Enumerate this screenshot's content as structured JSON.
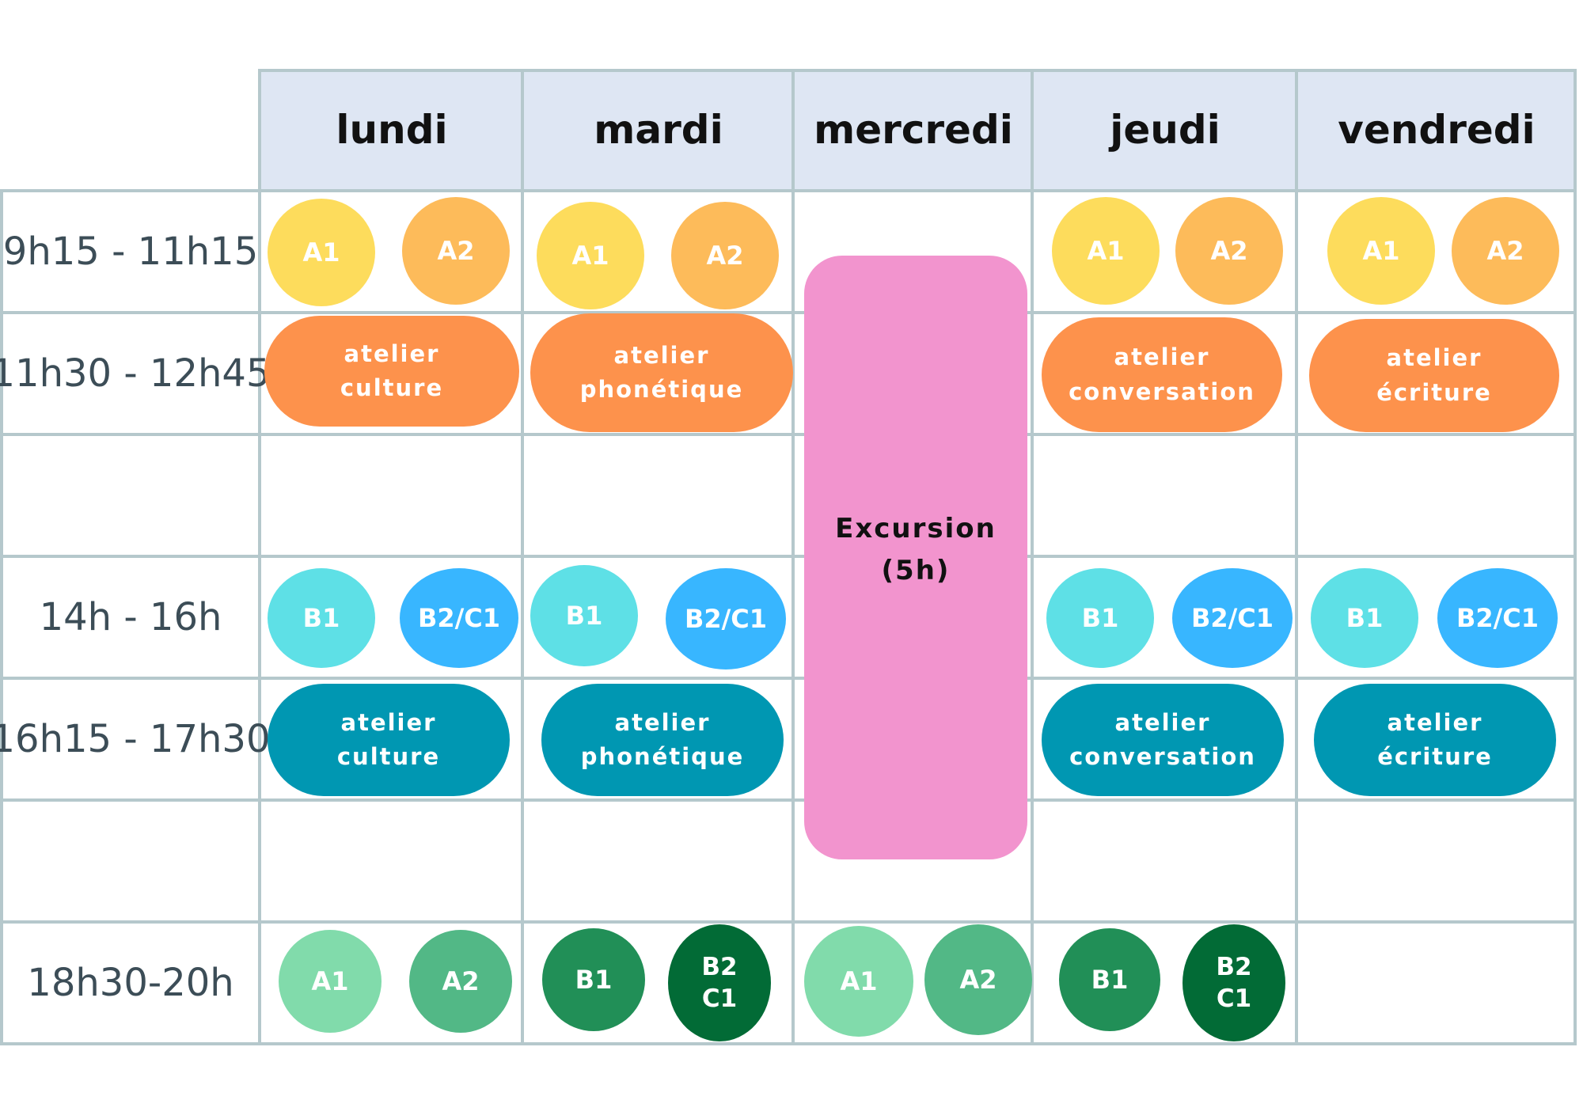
{
  "days": [
    "lundi",
    "mardi",
    "mercredi",
    "jeudi",
    "vendredi"
  ],
  "times": [
    "9h15 - 11h15",
    "11h30 - 12h45",
    "",
    "14h - 16h",
    "16h15 - 17h30",
    "",
    "18h30-20h"
  ],
  "levels": {
    "a1": "A1",
    "a2": "A2",
    "b1": "B1",
    "b2c1": "B2/C1",
    "b2": "B2",
    "c1": "C1"
  },
  "workshops": {
    "culture": [
      "atelier",
      "culture"
    ],
    "phonetique": [
      "atelier",
      "phonétique"
    ],
    "conversation": [
      "atelier",
      "conversation"
    ],
    "ecriture": [
      "atelier",
      "écriture"
    ]
  },
  "excursion": [
    "Excursion",
    "(5h)"
  ],
  "colors": {
    "header_bg": "#dee6f3",
    "grid_line": "#b5c8cc",
    "a1_morning": "#fddc5c",
    "a2_morning": "#fdbb5a",
    "workshop_midday": "#fd924c",
    "b1_afternoon": "#5ee0e6",
    "b2c1_afternoon": "#38b6ff",
    "workshop_afternoon": "#0097b2",
    "a1_evening": "#81dbab",
    "a2_evening": "#52b886",
    "b1_evening": "#218f57",
    "b2c1_evening": "#026b36",
    "excursion": "#f294ce"
  }
}
